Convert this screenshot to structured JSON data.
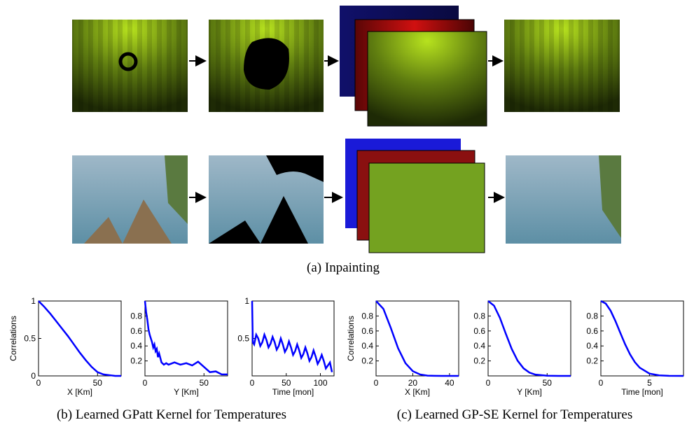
{
  "captions": {
    "a": "(a) Inpainting",
    "b": "(b) Learned GPatt Kernel for Temperatures",
    "c": "(c) Learned GP-SE Kernel for Temperatures"
  },
  "chart_data": [
    {
      "type": "line",
      "ylabel": "Correlations",
      "xlabel": "X [Km]",
      "xlim": [
        0,
        70
      ],
      "ylim": [
        0,
        1
      ],
      "xticks": [
        0,
        50
      ],
      "yticks": [
        0,
        0.5,
        1
      ],
      "color": "#0000ff",
      "x": [
        0,
        5,
        10,
        15,
        20,
        25,
        30,
        35,
        40,
        45,
        50,
        55,
        60,
        65,
        70
      ],
      "values": [
        1,
        0.92,
        0.83,
        0.73,
        0.63,
        0.53,
        0.42,
        0.31,
        0.21,
        0.12,
        0.05,
        0.02,
        0.01,
        0,
        0
      ]
    },
    {
      "type": "line",
      "xlabel": "Y [Km]",
      "xlim": [
        0,
        70
      ],
      "ylim": [
        0,
        1
      ],
      "xticks": [
        0,
        50
      ],
      "yticks": [
        0.2,
        0.4,
        0.6,
        0.8
      ],
      "color": "#0000ff",
      "x": [
        0,
        1,
        2,
        3,
        4,
        5,
        6,
        7,
        8,
        9,
        10,
        11,
        12,
        14,
        16,
        18,
        20,
        25,
        30,
        35,
        40,
        45,
        50,
        55,
        60,
        65,
        70
      ],
      "values": [
        1,
        0.85,
        0.75,
        0.62,
        0.55,
        0.5,
        0.45,
        0.38,
        0.42,
        0.33,
        0.36,
        0.25,
        0.3,
        0.18,
        0.15,
        0.17,
        0.15,
        0.18,
        0.15,
        0.17,
        0.14,
        0.19,
        0.12,
        0.05,
        0.06,
        0.02,
        0.02
      ]
    },
    {
      "type": "line",
      "xlabel": "Time [mon]",
      "xlim": [
        0,
        120
      ],
      "ylim": [
        0,
        1
      ],
      "xticks": [
        0,
        50,
        100
      ],
      "yticks": [
        0.5,
        1
      ],
      "color": "#0000ff",
      "x": [
        0,
        1,
        3,
        6,
        9,
        12,
        15,
        18,
        21,
        24,
        27,
        30,
        33,
        36,
        39,
        42,
        45,
        48,
        51,
        54,
        57,
        60,
        63,
        66,
        69,
        72,
        75,
        78,
        81,
        84,
        87,
        90,
        93,
        96,
        99,
        102,
        105,
        108,
        111,
        114,
        117
      ],
      "values": [
        1,
        0.45,
        0.42,
        0.55,
        0.5,
        0.4,
        0.45,
        0.55,
        0.48,
        0.38,
        0.43,
        0.52,
        0.45,
        0.35,
        0.4,
        0.5,
        0.42,
        0.32,
        0.37,
        0.46,
        0.38,
        0.28,
        0.33,
        0.42,
        0.34,
        0.24,
        0.29,
        0.38,
        0.3,
        0.2,
        0.25,
        0.34,
        0.26,
        0.16,
        0.21,
        0.28,
        0.2,
        0.1,
        0.14,
        0.18,
        0.05
      ]
    },
    {
      "type": "line",
      "ylabel": "Correlations",
      "xlabel": "X [Km]",
      "xlim": [
        0,
        45
      ],
      "ylim": [
        0,
        1
      ],
      "xticks": [
        0,
        20,
        40
      ],
      "yticks": [
        0.2,
        0.4,
        0.6,
        0.8
      ],
      "color": "#0000ff",
      "x": [
        0,
        4,
        8,
        12,
        16,
        20,
        24,
        28,
        32,
        36,
        40,
        45
      ],
      "values": [
        1,
        0.895,
        0.642,
        0.369,
        0.17,
        0.063,
        0.019,
        0.004,
        0.001,
        0,
        0,
        0
      ]
    },
    {
      "type": "line",
      "xlabel": "Y [Km]",
      "xlim": [
        0,
        70
      ],
      "ylim": [
        0,
        1
      ],
      "xticks": [
        0,
        50
      ],
      "yticks": [
        0.2,
        0.4,
        0.6,
        0.8
      ],
      "color": "#0000ff",
      "x": [
        0,
        5,
        10,
        15,
        20,
        25,
        30,
        35,
        40,
        50,
        60,
        70
      ],
      "values": [
        1,
        0.938,
        0.775,
        0.563,
        0.36,
        0.203,
        0.101,
        0.044,
        0.017,
        0.002,
        0,
        0
      ]
    },
    {
      "type": "line",
      "xlabel": "Time [mon]",
      "xlim": [
        0,
        8.5
      ],
      "ylim": [
        0,
        1
      ],
      "xticks": [
        0,
        5
      ],
      "yticks": [
        0.2,
        0.4,
        0.6,
        0.8
      ],
      "color": "#0000ff",
      "x": [
        0,
        0.5,
        1,
        1.5,
        2,
        2.5,
        3,
        3.5,
        4,
        5,
        6,
        7,
        8.5
      ],
      "values": [
        1,
        0.966,
        0.871,
        0.732,
        0.575,
        0.421,
        0.288,
        0.183,
        0.109,
        0.031,
        0.007,
        0.001,
        0
      ]
    }
  ]
}
